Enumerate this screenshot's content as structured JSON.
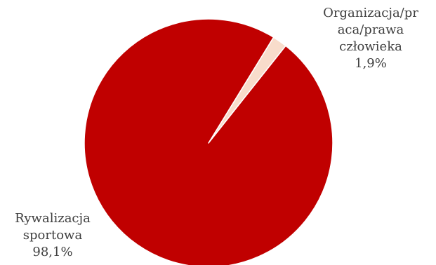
{
  "chart_data": {
    "type": "pie",
    "title": "",
    "slices": [
      {
        "label_lines": [
          "Organizacja/pr",
          "aca/prawa",
          "człowieka"
        ],
        "value_label": "1,9%",
        "value": 1.9,
        "color": "#f8dccb"
      },
      {
        "label_lines": [
          "Rywalizacja",
          "sportowa"
        ],
        "value_label": "98,1%",
        "value": 98.1,
        "color": "#c00000"
      }
    ],
    "legend": "none",
    "slice_border_color": "#ffffff"
  }
}
